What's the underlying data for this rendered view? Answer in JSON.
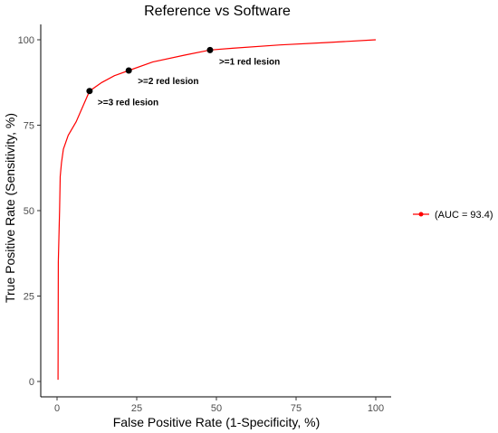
{
  "chart_data": {
    "type": "line",
    "title": "Reference vs Software",
    "xlabel": "False Positive Rate (1-Specificity, %)",
    "ylabel": "True Positive Rate (Sensitivity, %)",
    "xlim": [
      0,
      100
    ],
    "ylim": [
      0,
      100
    ],
    "xticks": [
      0,
      25,
      50,
      75,
      100
    ],
    "yticks": [
      0,
      25,
      50,
      75,
      100
    ],
    "grid": false,
    "legend_position": "right",
    "series": [
      {
        "name": "(AUC = 93.4)",
        "color": "#ff0000",
        "x": [
          0.3,
          0.4,
          0.8,
          1.0,
          1.4,
          2.0,
          3.5,
          6.0,
          10.2,
          14.0,
          18.0,
          22.5,
          30.0,
          40.0,
          48.0,
          55.0,
          70.0,
          85.0,
          100.0
        ],
        "y": [
          0.5,
          35,
          50,
          60,
          64,
          68,
          72,
          76,
          85,
          87.5,
          89.5,
          91,
          93.5,
          95.5,
          97,
          97.5,
          98.5,
          99.2,
          100
        ]
      }
    ],
    "points": [
      {
        "x": 10.2,
        "y": 85,
        "label": ">=3 red lesion"
      },
      {
        "x": 22.5,
        "y": 91,
        "label": ">=2 red lesion"
      },
      {
        "x": 48.0,
        "y": 97,
        "label": ">=1 red lesion"
      }
    ]
  }
}
